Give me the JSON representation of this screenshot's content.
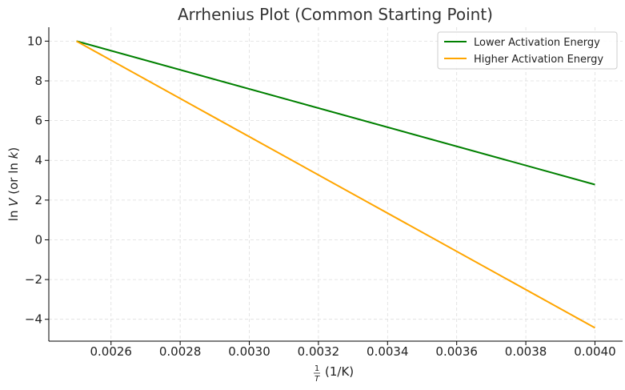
{
  "chart_data": {
    "type": "line",
    "title": "Arrhenius Plot (Common Starting Point)",
    "xlabel": "1/T (1/K)",
    "ylabel": "ln V (or ln k)",
    "xlim": [
      0.00242,
      0.00408
    ],
    "ylim": [
      -5.1,
      10.7
    ],
    "xticks": [
      0.0026,
      0.0028,
      0.003,
      0.0032,
      0.0034,
      0.0036,
      0.0038,
      0.004
    ],
    "xtick_labels": [
      "0.0026",
      "0.0028",
      "0.0030",
      "0.0032",
      "0.0034",
      "0.0036",
      "0.0038",
      "0.0040"
    ],
    "yticks": [
      -4,
      -2,
      0,
      2,
      4,
      6,
      8,
      10
    ],
    "ytick_labels": [
      "−4",
      "−2",
      "0",
      "2",
      "4",
      "6",
      "8",
      "10"
    ],
    "grid": true,
    "legend_position": "top-right",
    "series": [
      {
        "name": "Lower Activation Energy",
        "color": "#008000",
        "x": [
          0.0025,
          0.004
        ],
        "y": [
          10.0,
          2.78
        ]
      },
      {
        "name": "Higher Activation Energy",
        "color": "#FFA500",
        "x": [
          0.0025,
          0.004
        ],
        "y": [
          10.0,
          -4.43
        ]
      }
    ]
  }
}
